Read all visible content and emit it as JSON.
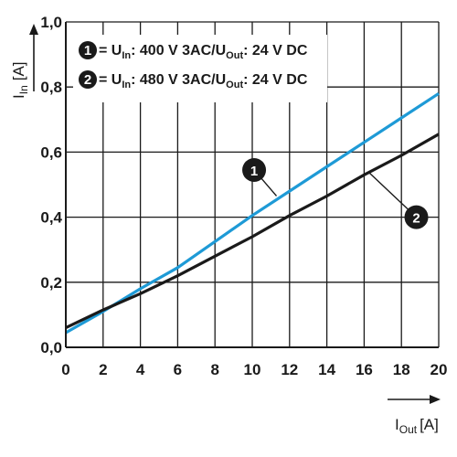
{
  "chart_data": {
    "type": "line",
    "xlabel": "I",
    "xlabel_sub": "Out",
    "xlabel_unit": "[A]",
    "ylabel": "I",
    "ylabel_sub": "In",
    "ylabel_unit": "[A]",
    "xlim": [
      0,
      20
    ],
    "ylim": [
      0,
      1.0
    ],
    "xticks": [
      0,
      2,
      4,
      6,
      8,
      10,
      12,
      14,
      16,
      18,
      20
    ],
    "xtick_labels": [
      "0",
      "2",
      "4",
      "6",
      "8",
      "10",
      "12",
      "14",
      "16",
      "18",
      "20"
    ],
    "yticks": [
      0,
      0.2,
      0.4,
      0.6,
      0.8,
      1.0
    ],
    "ytick_labels": [
      "0,0",
      "0,2",
      "0,4",
      "0,6",
      "0,8",
      "1,0"
    ],
    "grid": true,
    "legend_position": "top-left",
    "series": [
      {
        "marker": "1",
        "label_prefix": " = U",
        "label_sub1": "In",
        "label_mid": ": 400 V 3AC/U",
        "label_sub2": "Out",
        "label_suffix": ": 24 V DC",
        "color": "#1e9ad6",
        "x": [
          0,
          2,
          4,
          6,
          8,
          10,
          12,
          14,
          16,
          18,
          20
        ],
        "y": [
          0.045,
          0.11,
          0.18,
          0.245,
          0.325,
          0.405,
          0.48,
          0.555,
          0.63,
          0.705,
          0.78
        ]
      },
      {
        "marker": "2",
        "label_prefix": " = U",
        "label_sub1": "In",
        "label_mid": ": 480 V 3AC/U",
        "label_sub2": "Out",
        "label_suffix": ": 24 V DC",
        "color": "#1a1a1a",
        "x": [
          0,
          2,
          4,
          6,
          8,
          10,
          12,
          14,
          16,
          18,
          20
        ],
        "y": [
          0.06,
          0.115,
          0.165,
          0.22,
          0.28,
          0.34,
          0.405,
          0.465,
          0.53,
          0.59,
          0.655
        ]
      }
    ],
    "callouts": [
      {
        "series": "1",
        "number": "1",
        "x": 10.1,
        "y": 0.545,
        "tx": 11.3,
        "ty": 0.465
      },
      {
        "series": "2",
        "number": "2",
        "x": 18.8,
        "y": 0.4,
        "tx": 16.3,
        "ty": 0.535
      }
    ]
  }
}
